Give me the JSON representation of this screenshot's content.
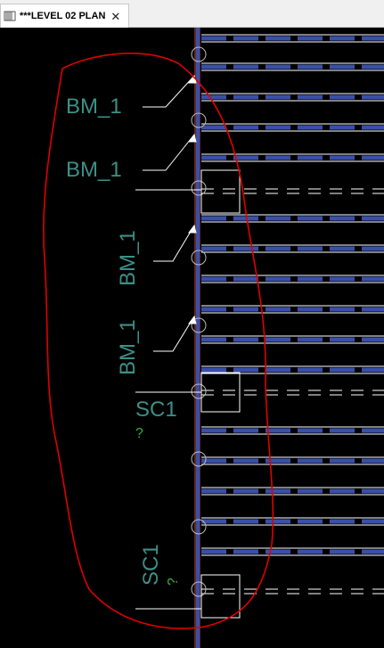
{
  "tab": {
    "title": "***LEVEL 02 PLAN",
    "icon": "plan-view-icon",
    "close_label": "✕"
  },
  "tags": {
    "bm_top": "BM_1",
    "bm_second": "BM_1",
    "bm_vertical_1": "BM_1",
    "bm_vertical_2": "BM_1",
    "sc_middle": "SC1",
    "sc_middle_q": "?",
    "sc_bottom": "SC1",
    "sc_bottom_q": "?"
  },
  "colors": {
    "background": "#000000",
    "beam": "#3a4fa8",
    "tag_text": "#3e8f88",
    "markup_cloud": "#e00000",
    "question_mark": "#33b033",
    "column_line": "#c0504d"
  }
}
